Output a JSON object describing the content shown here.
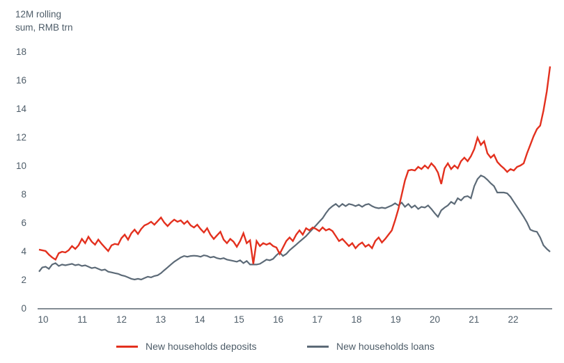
{
  "chart": {
    "unit_label_line1": "12M rolling",
    "unit_label_line2": "sum, RMB trn",
    "y_ticks": [
      18,
      16,
      14,
      12,
      10,
      8,
      6,
      4,
      2,
      0
    ],
    "x_tick_labels": [
      "10",
      "11",
      "12",
      "13",
      "14",
      "15",
      "16",
      "17",
      "18",
      "19",
      "20",
      "21",
      "22"
    ],
    "text_color": "#4d5c68",
    "axis_color": "#5a6670"
  },
  "chart_data": {
    "type": "line",
    "title": "",
    "ylabel": "12M rolling sum, RMB trn",
    "ylim": [
      0,
      18
    ],
    "y_tick_step": 2,
    "x_tick_labels": [
      "10",
      "11",
      "12",
      "13",
      "14",
      "15",
      "16",
      "17",
      "18",
      "19",
      "20",
      "21",
      "22"
    ],
    "x_start_year": 2010,
    "x_frequency": "monthly",
    "grid": false,
    "legend_position": "bottom",
    "series": [
      {
        "name": "New households deposits",
        "color": "#e3301e",
        "values": [
          4.15,
          4.1,
          4.05,
          3.8,
          3.6,
          3.45,
          3.9,
          4.0,
          3.95,
          4.1,
          4.4,
          4.2,
          4.45,
          4.9,
          4.6,
          5.05,
          4.7,
          4.5,
          4.85,
          4.55,
          4.3,
          4.05,
          4.45,
          4.55,
          4.5,
          4.95,
          5.2,
          4.85,
          5.3,
          5.55,
          5.25,
          5.6,
          5.85,
          5.95,
          6.1,
          5.9,
          6.15,
          6.4,
          6.05,
          5.8,
          6.05,
          6.25,
          6.1,
          6.2,
          5.95,
          6.15,
          5.85,
          5.7,
          5.9,
          5.6,
          5.35,
          5.65,
          5.2,
          4.9,
          5.15,
          5.4,
          4.85,
          4.6,
          4.9,
          4.7,
          4.35,
          4.75,
          5.3,
          4.6,
          4.8,
          3.15,
          4.75,
          4.4,
          4.6,
          4.5,
          4.6,
          4.4,
          4.3,
          3.85,
          4.3,
          4.75,
          5.0,
          4.75,
          5.2,
          5.5,
          5.2,
          5.65,
          5.5,
          5.7,
          5.6,
          5.45,
          5.7,
          5.5,
          5.6,
          5.45,
          5.1,
          4.75,
          4.9,
          4.65,
          4.4,
          4.6,
          4.25,
          4.5,
          4.65,
          4.35,
          4.5,
          4.25,
          4.75,
          5.0,
          4.65,
          4.9,
          5.2,
          5.5,
          6.2,
          7.0,
          8.0,
          9.0,
          9.7,
          9.75,
          9.7,
          9.95,
          9.8,
          10.05,
          9.85,
          10.2,
          9.95,
          9.55,
          8.75,
          9.85,
          10.2,
          9.8,
          10.05,
          9.85,
          10.35,
          10.6,
          10.35,
          10.7,
          11.2,
          12.0,
          11.5,
          11.75,
          10.9,
          10.6,
          10.8,
          10.3,
          10.05,
          9.85,
          9.6,
          9.8,
          9.7,
          9.95,
          10.05,
          10.2,
          10.9,
          11.5,
          12.1,
          12.6,
          12.85,
          13.9,
          15.25,
          17.0
        ]
      },
      {
        "name": "New households loans",
        "color": "#5c6a77",
        "values": [
          2.6,
          2.9,
          2.95,
          2.8,
          3.1,
          3.2,
          3.0,
          3.1,
          3.05,
          3.1,
          3.15,
          3.05,
          3.1,
          3.0,
          3.05,
          2.95,
          2.85,
          2.9,
          2.8,
          2.7,
          2.75,
          2.6,
          2.55,
          2.5,
          2.45,
          2.35,
          2.3,
          2.2,
          2.1,
          2.05,
          2.1,
          2.05,
          2.15,
          2.25,
          2.2,
          2.3,
          2.35,
          2.5,
          2.7,
          2.9,
          3.1,
          3.3,
          3.45,
          3.6,
          3.7,
          3.65,
          3.7,
          3.72,
          3.7,
          3.65,
          3.75,
          3.7,
          3.6,
          3.65,
          3.55,
          3.5,
          3.55,
          3.45,
          3.4,
          3.35,
          3.3,
          3.4,
          3.2,
          3.35,
          3.1,
          3.1,
          3.1,
          3.15,
          3.3,
          3.45,
          3.4,
          3.5,
          3.75,
          3.95,
          3.7,
          3.85,
          4.1,
          4.3,
          4.5,
          4.7,
          4.9,
          5.1,
          5.35,
          5.6,
          5.85,
          6.1,
          6.35,
          6.7,
          7.0,
          7.2,
          7.35,
          7.15,
          7.35,
          7.2,
          7.35,
          7.3,
          7.2,
          7.3,
          7.15,
          7.3,
          7.35,
          7.2,
          7.1,
          7.05,
          7.1,
          7.05,
          7.15,
          7.25,
          7.4,
          7.25,
          7.45,
          7.15,
          7.35,
          7.1,
          7.25,
          7.0,
          7.15,
          7.1,
          7.25,
          7.0,
          6.7,
          6.45,
          6.9,
          7.1,
          7.25,
          7.5,
          7.35,
          7.75,
          7.6,
          7.85,
          7.9,
          7.75,
          8.6,
          9.1,
          9.35,
          9.25,
          9.05,
          8.8,
          8.6,
          8.15,
          8.15,
          8.15,
          8.1,
          7.85,
          7.5,
          7.15,
          6.8,
          6.45,
          6.05,
          5.55,
          5.45,
          5.4,
          5.0,
          4.45,
          4.2,
          4.0
        ]
      }
    ]
  }
}
